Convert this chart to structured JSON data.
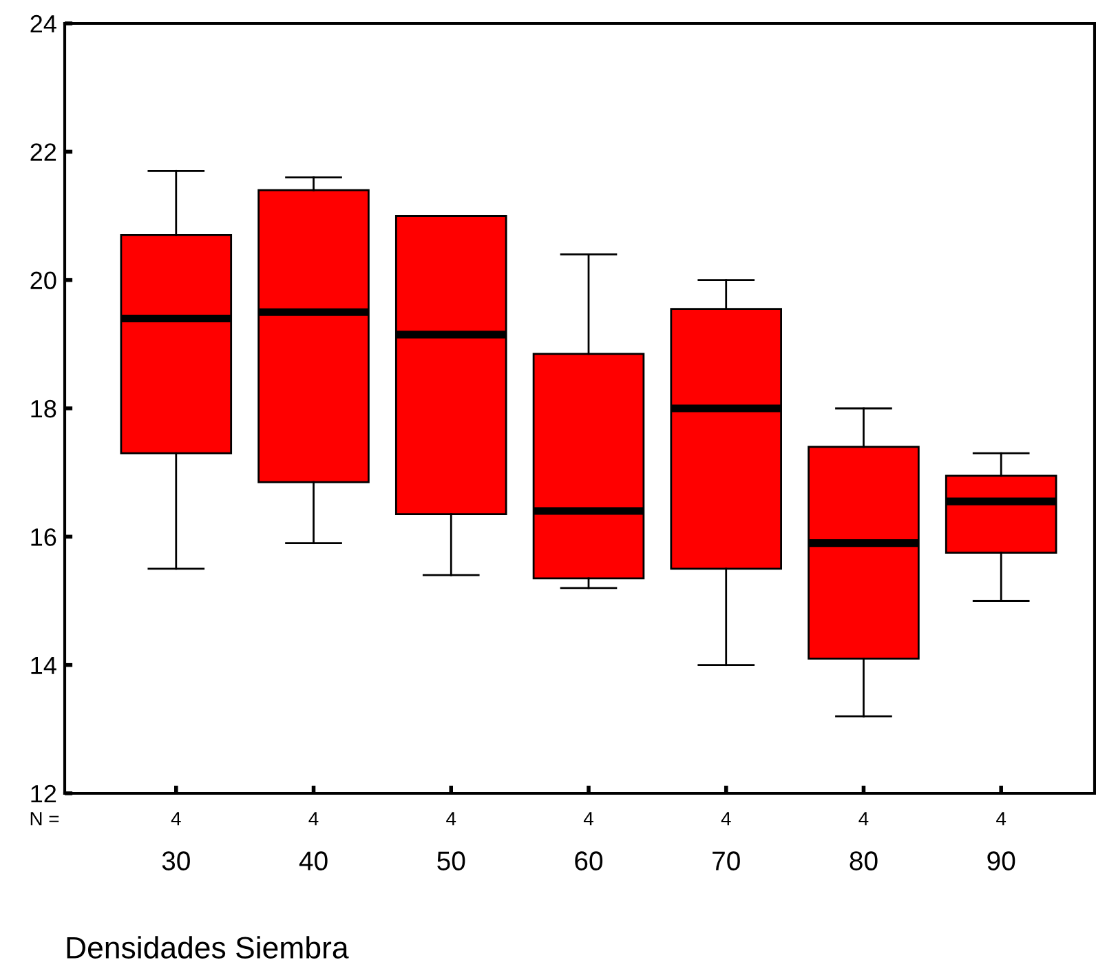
{
  "chart_data": {
    "type": "box",
    "xlabel": "Densidades Siembra",
    "categories": [
      "30",
      "40",
      "50",
      "60",
      "70",
      "80",
      "90"
    ],
    "series": [
      {
        "color": "#ff0000",
        "boxes": [
          {
            "low": 15.5,
            "q1": 17.3,
            "median": 19.4,
            "q3": 20.7,
            "high": 21.7
          },
          {
            "low": 15.9,
            "q1": 16.85,
            "median": 19.5,
            "q3": 21.4,
            "high": 21.6
          },
          {
            "low": 15.4,
            "q1": 16.35,
            "median": 19.15,
            "q3": 21.0,
            "high": 21.0
          },
          {
            "low": 15.2,
            "q1": 15.35,
            "median": 16.4,
            "q3": 18.85,
            "high": 20.4
          },
          {
            "low": 14.0,
            "q1": 15.5,
            "median": 18.0,
            "q3": 19.55,
            "high": 20.0
          },
          {
            "low": 13.2,
            "q1": 14.1,
            "median": 15.9,
            "q3": 17.4,
            "high": 18.0
          },
          {
            "low": 15.0,
            "q1": 15.75,
            "median": 16.55,
            "q3": 16.95,
            "high": 17.3
          }
        ]
      }
    ],
    "ylim": [
      12,
      24
    ],
    "yticks": [
      12,
      14,
      16,
      18,
      20,
      22,
      24
    ],
    "grid": false,
    "legend": false,
    "annotations": [
      "N =",
      "4",
      "4",
      "4",
      "4",
      "4",
      "4",
      "4"
    ]
  }
}
